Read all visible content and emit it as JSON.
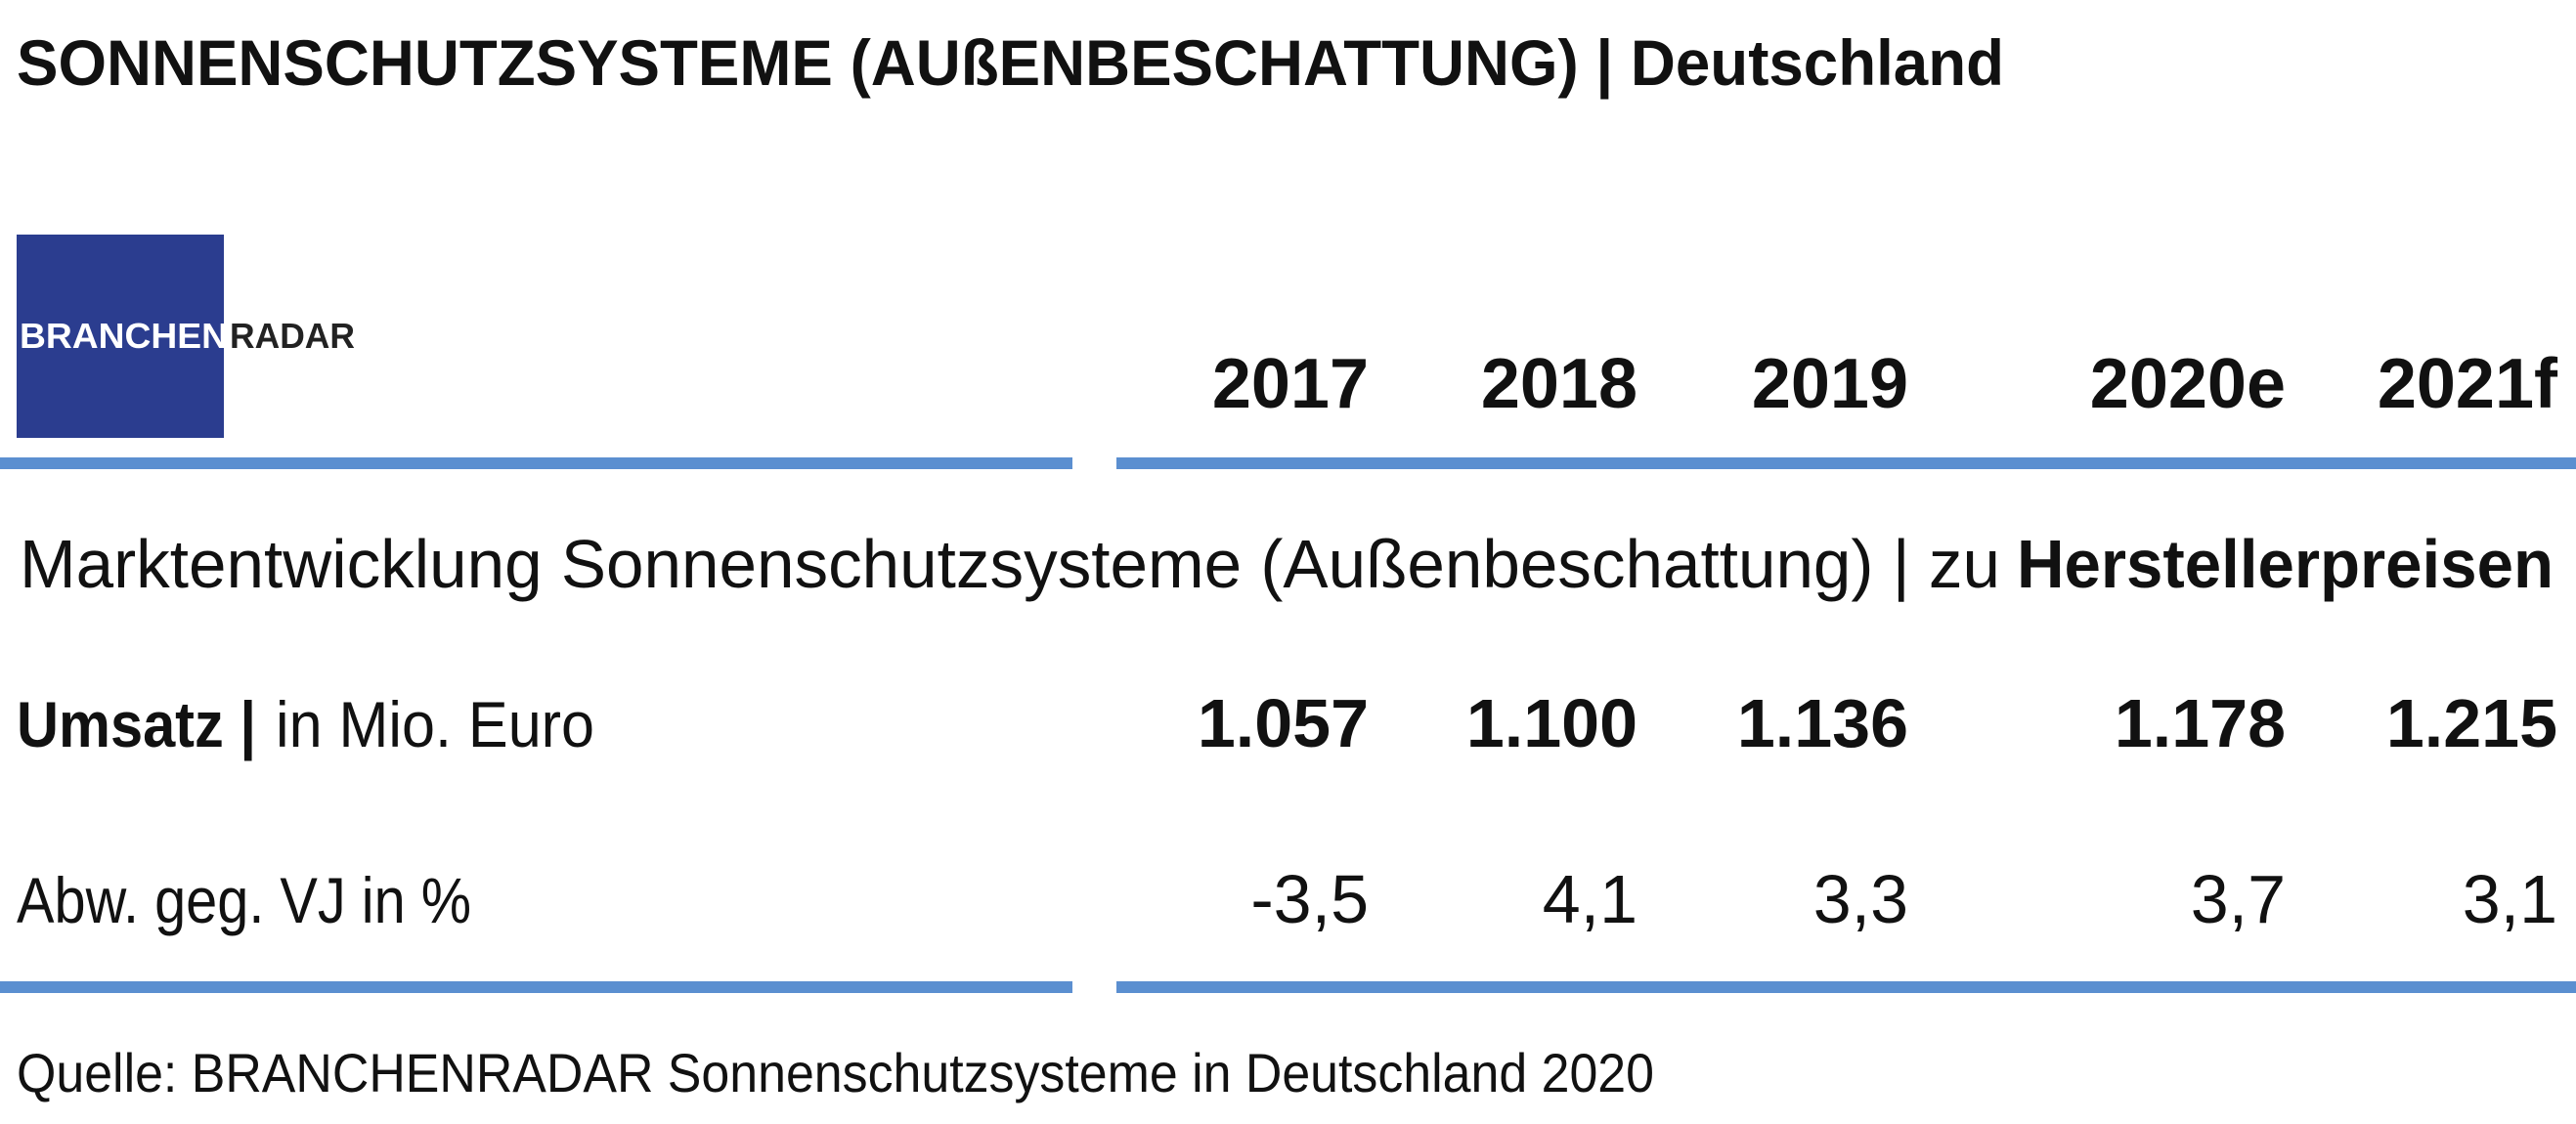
{
  "header": {
    "title": "SONNENSCHUTZSYSTEME (AUßENBESCHATTUNG) | Deutschland"
  },
  "logo": {
    "part1": "BRANCHEN",
    "part2": "RADAR"
  },
  "table": {
    "columns": [
      "2017",
      "2018",
      "2019",
      "2020e",
      "2021f"
    ],
    "subtitle": {
      "text": "Marktentwicklung Sonnenschutzsysteme (Außenbeschattung) | zu",
      "emphasis": "Herstellerpreisen"
    },
    "rows": [
      {
        "label": "Umsatz |",
        "unit": "in Mio. Euro",
        "values": [
          "1.057",
          "1.100",
          "1.136",
          "1.178",
          "1.215"
        ]
      },
      {
        "label": "Abw. geg. VJ in %",
        "values": [
          "-3,5",
          "4,1",
          "3,3",
          "3,7",
          "3,1"
        ]
      }
    ]
  },
  "source": "Quelle: BRANCHENRADAR Sonnenschutzsysteme in Deutschland 2020"
}
